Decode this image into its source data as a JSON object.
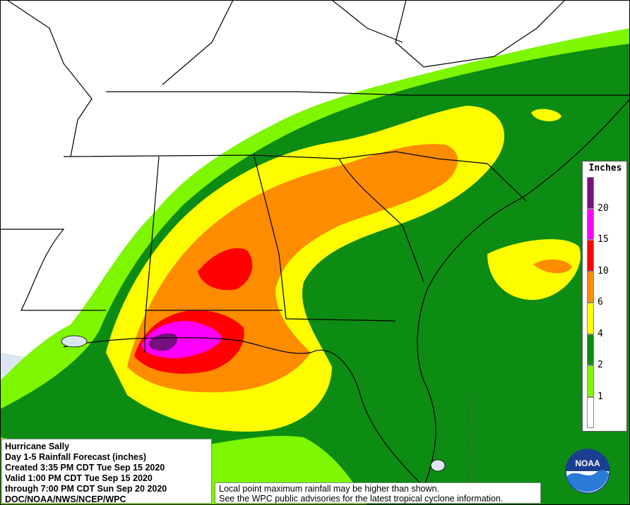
{
  "legend": {
    "title": "Inches",
    "bins": [
      {
        "label": "",
        "color": "#ffffff"
      },
      {
        "label": "1",
        "color": "#7ef600"
      },
      {
        "label": "2",
        "color": "#0c8c12"
      },
      {
        "label": "4",
        "color": "#fdfd00"
      },
      {
        "label": "6",
        "color": "#fe8c00"
      },
      {
        "label": "10",
        "color": "#fe0000"
      },
      {
        "label": "15",
        "color": "#fd00fd"
      },
      {
        "label": "20",
        "color": "#75107f"
      }
    ]
  },
  "info": {
    "line1": "Hurricane Sally",
    "line2": "Day 1-5 Rainfall Forecast (inches)",
    "line3": "Created 3:35 PM CDT Tue Sep 15 2020",
    "line4": "Valid 1:00 PM CDT Tue Sep 15 2020",
    "line5": "through 7:00 PM CDT Sun Sep 20 2020",
    "line6": "DOC/NOAA/NWS/NCEP/WPC"
  },
  "disclaimer": {
    "line1": "Local point maximum rainfall may be higher than shown.",
    "line2": "See the WPC public advisories for the latest tropical cyclone information."
  },
  "logo": {
    "text": "NOAA"
  },
  "colors": {
    "water": "#dbe6f0",
    "land": "#ffffff",
    "border": "#000000"
  }
}
